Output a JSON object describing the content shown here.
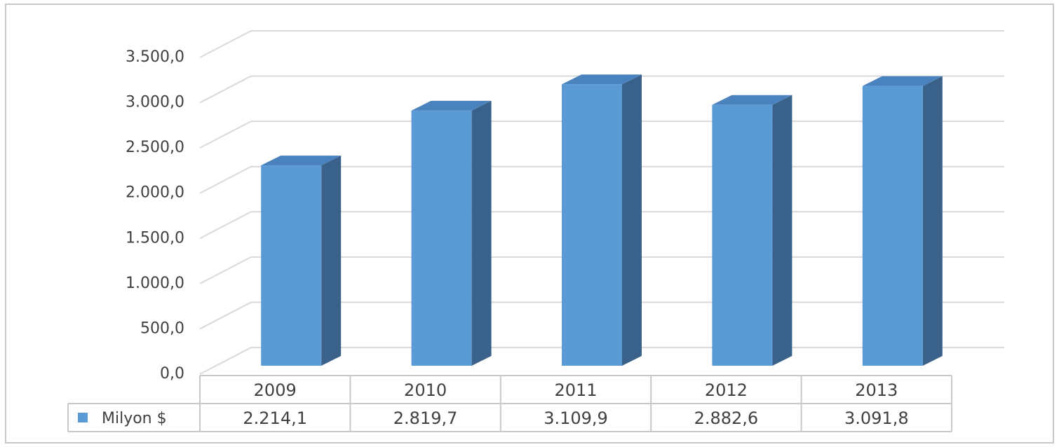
{
  "chart_data": {
    "type": "bar3d",
    "categories": [
      "2009",
      "2010",
      "2011",
      "2012",
      "2013"
    ],
    "series": [
      {
        "name": "Milyon $",
        "color": "#5b9bd5",
        "values": [
          2214.1,
          2819.7,
          3109.9,
          2882.6,
          3091.8
        ],
        "value_labels": [
          "2.214,1",
          "2.819,7",
          "3.109,9",
          "2.882,6",
          "3.091,8"
        ]
      }
    ],
    "ylim": [
      0,
      3500
    ],
    "yticks": [
      {
        "value": 0,
        "label": "0,0"
      },
      {
        "value": 500,
        "label": "500,0"
      },
      {
        "value": 1000,
        "label": "1.000,0"
      },
      {
        "value": 1500,
        "label": "1.500,0"
      },
      {
        "value": 2000,
        "label": "2.000,0"
      },
      {
        "value": 2500,
        "label": "2.500,0"
      },
      {
        "value": 3000,
        "label": "3.000,0"
      },
      {
        "value": 3500,
        "label": "3.500,0"
      }
    ],
    "grid": true
  }
}
